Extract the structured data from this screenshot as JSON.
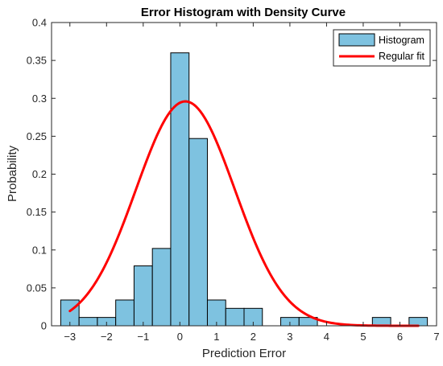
{
  "chart_data": {
    "type": "bar",
    "title": "Error Histogram with Density Curve",
    "xlabel": "Prediction Error",
    "ylabel": "Probability",
    "xlim": [
      -3.5,
      7
    ],
    "ylim": [
      0,
      0.4
    ],
    "xticks": [
      -3,
      -2,
      -1,
      0,
      1,
      2,
      3,
      4,
      5,
      6,
      7
    ],
    "xtick_labels": [
      "−3",
      "−2",
      "−1",
      "0",
      "1",
      "2",
      "3",
      "4",
      "5",
      "6",
      "7"
    ],
    "yticks": [
      0,
      0.05,
      0.1,
      0.15,
      0.2,
      0.25,
      0.3,
      0.35,
      0.4
    ],
    "ytick_labels": [
      "0",
      "0.05",
      "0.1",
      "0.15",
      "0.2",
      "0.25",
      "0.3",
      "0.35",
      "0.4"
    ],
    "grid": false,
    "legend_position": "top-right",
    "series": [
      {
        "name": "Histogram",
        "kind": "histogram",
        "color": "#7ec2e0",
        "edge_color": "#000000",
        "bin_edges": [
          -3.25,
          -2.75,
          -2.25,
          -1.75,
          -1.25,
          -0.75,
          -0.25,
          0.25,
          0.75,
          1.25,
          1.75,
          2.25,
          2.75,
          3.25,
          3.75,
          4.25,
          4.75,
          5.25,
          5.75,
          6.25,
          6.75
        ],
        "values": [
          0.034,
          0.011,
          0.011,
          0.034,
          0.079,
          0.102,
          0.36,
          0.247,
          0.034,
          0.023,
          0.023,
          0,
          0.011,
          0.011,
          0,
          0,
          0,
          0.011,
          0,
          0.011
        ]
      },
      {
        "name": "Regular fit",
        "kind": "density",
        "color": "#ff0000",
        "x_range": [
          -3.0,
          6.5
        ],
        "mean": 0.15,
        "std": 1.35,
        "peak": 0.296
      }
    ]
  }
}
